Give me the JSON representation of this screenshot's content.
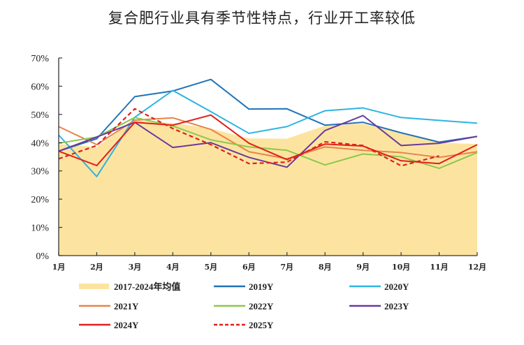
{
  "chart_data": {
    "type": "line",
    "title": "复合肥行业具有季节性特点，行业开工率较低",
    "xlabel": "",
    "ylabel": "",
    "categories": [
      "1月",
      "2月",
      "3月",
      "4月",
      "5月",
      "6月",
      "7月",
      "8月",
      "9月",
      "10月",
      "11月",
      "12月"
    ],
    "ylim": [
      0,
      70
    ],
    "yticks": [
      0,
      10,
      20,
      30,
      40,
      50,
      60,
      70
    ],
    "ytick_labels": [
      "0%",
      "10%",
      "20%",
      "30%",
      "40%",
      "50%",
      "60%",
      "70%"
    ],
    "grid": false,
    "legend_position": "bottom",
    "area": {
      "name": "2017-2024年均值",
      "color": "#fce4a0",
      "values": [
        39.5,
        38.5,
        48.0,
        47.0,
        45.0,
        41.5,
        41.4,
        46.0,
        46.7,
        43.5,
        40.0,
        39.5
      ]
    },
    "series": [
      {
        "name": "2019Y",
        "color": "#2173b8",
        "dash": false,
        "values": [
          37.0,
          41.4,
          56.3,
          58.3,
          62.4,
          51.9,
          52.0,
          46.2,
          47.2,
          43.5,
          40.2,
          42.2
        ]
      },
      {
        "name": "2020Y",
        "color": "#2eb4e0",
        "dash": false,
        "values": [
          42.7,
          28.0,
          49.0,
          58.5,
          51.0,
          43.3,
          45.7,
          51.3,
          52.3,
          48.9,
          47.9,
          46.9
        ]
      },
      {
        "name": "2021Y",
        "color": "#e8834a",
        "dash": false,
        "values": [
          45.7,
          39.3,
          48.0,
          48.8,
          44.7,
          36.8,
          34.3,
          38.5,
          37.3,
          36.5,
          34.8,
          36.8
        ]
      },
      {
        "name": "2022Y",
        "color": "#8cc84b",
        "dash": false,
        "values": [
          39.8,
          42.0,
          48.9,
          45.9,
          41.0,
          38.5,
          37.3,
          32.1,
          36.0,
          35.0,
          30.9,
          36.5
        ]
      },
      {
        "name": "2023Y",
        "color": "#6a3a9c",
        "dash": false,
        "values": [
          37.0,
          42.0,
          47.2,
          38.3,
          40.0,
          34.8,
          31.3,
          44.3,
          49.6,
          39.0,
          39.8,
          42.2
        ]
      },
      {
        "name": "2024Y",
        "color": "#e0201c",
        "dash": false,
        "values": [
          37.0,
          31.9,
          47.2,
          46.2,
          49.8,
          39.8,
          34.0,
          39.5,
          38.8,
          33.6,
          32.6,
          39.3
        ]
      },
      {
        "name": "2025Y",
        "color": "#e0201c",
        "dash": true,
        "values": [
          34.3,
          39.0,
          52.0,
          45.0,
          39.3,
          32.6,
          33.1,
          40.3,
          39.0,
          31.8,
          35.3,
          null
        ]
      }
    ]
  }
}
